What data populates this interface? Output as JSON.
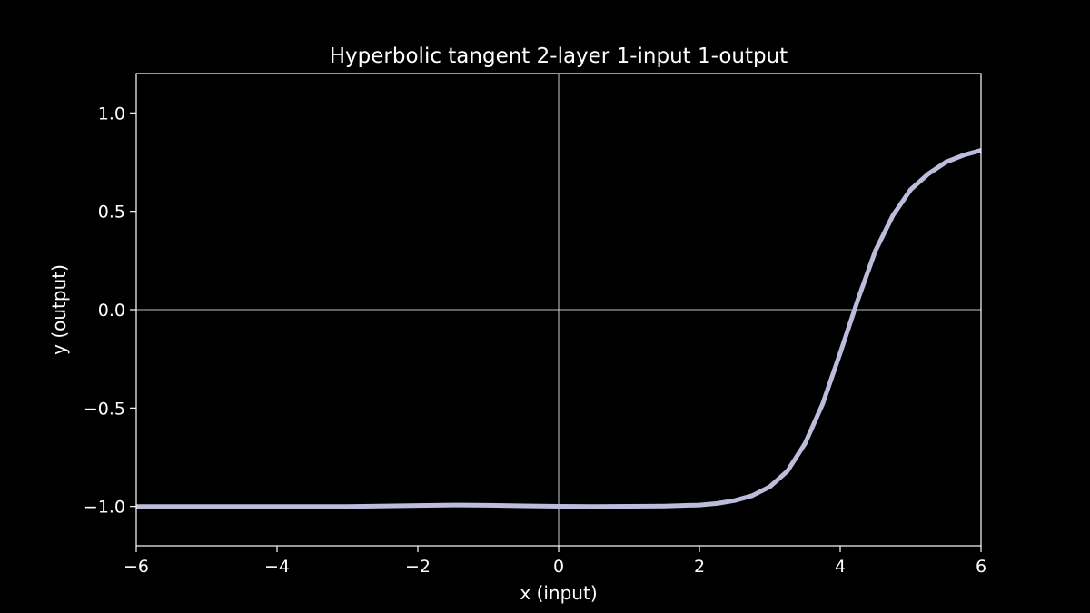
{
  "chart_data": {
    "type": "line",
    "title": "Hyperbolic tangent 2-layer 1-input 1-output",
    "xlabel": "x (input)",
    "ylabel": "y (output)",
    "xlim": [
      -6,
      6
    ],
    "ylim": [
      -1.2,
      1.2
    ],
    "xticks": [
      -6,
      -4,
      -2,
      0,
      2,
      4,
      6
    ],
    "xtick_labels": [
      "−6",
      "−4",
      "−2",
      "0",
      "2",
      "4",
      "6"
    ],
    "yticks": [
      1.0,
      0.5,
      0.0,
      -0.5,
      -1.0
    ],
    "ytick_labels": [
      "1.0",
      "0.5",
      "0.0",
      "−0.5",
      "−1.0"
    ],
    "grid": false,
    "reference_lines": {
      "x": 0,
      "y": 0
    },
    "series": [
      {
        "color": "#bcbddc",
        "x": [
          -6,
          -5,
          -4,
          -3,
          -2,
          -1.5,
          -1,
          -0.5,
          0,
          0.5,
          1,
          1.5,
          2,
          2.25,
          2.5,
          2.75,
          3,
          3.25,
          3.5,
          3.75,
          4,
          4.25,
          4.5,
          4.75,
          5,
          5.25,
          5.5,
          5.75,
          6
        ],
        "y": [
          -1.0,
          -1.0,
          -1.0,
          -1.0,
          -0.995,
          -0.993,
          -0.994,
          -0.997,
          -0.999,
          -1.0,
          -0.999,
          -0.998,
          -0.993,
          -0.985,
          -0.97,
          -0.945,
          -0.9,
          -0.82,
          -0.68,
          -0.48,
          -0.22,
          0.05,
          0.3,
          0.48,
          0.61,
          0.69,
          0.75,
          0.785,
          0.81
        ]
      }
    ]
  }
}
